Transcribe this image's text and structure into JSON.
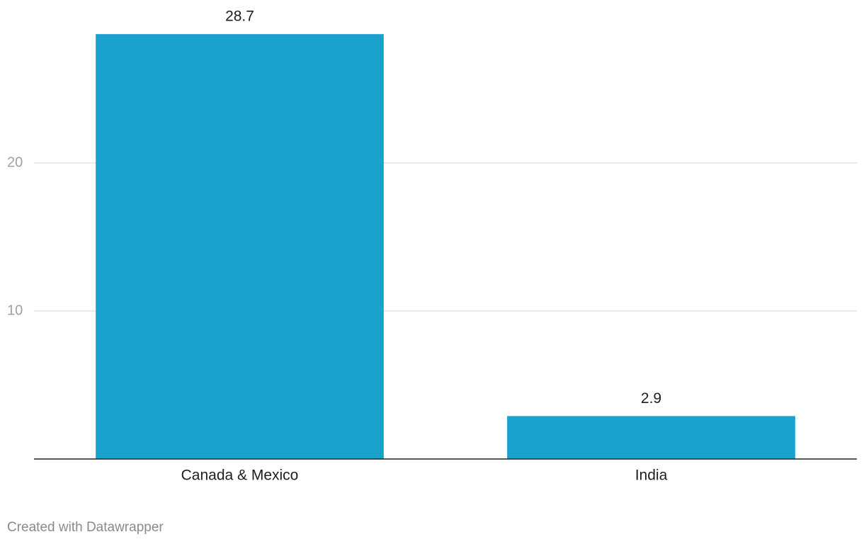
{
  "chart_data": {
    "type": "bar",
    "categories": [
      "Canada & Mexico",
      "India"
    ],
    "values": [
      28.7,
      2.9
    ],
    "color": "#1aa1ce",
    "ylim": [
      0,
      30
    ],
    "yticks": [
      10,
      20
    ],
    "grid": true,
    "credit": "Created with Datawrapper"
  }
}
